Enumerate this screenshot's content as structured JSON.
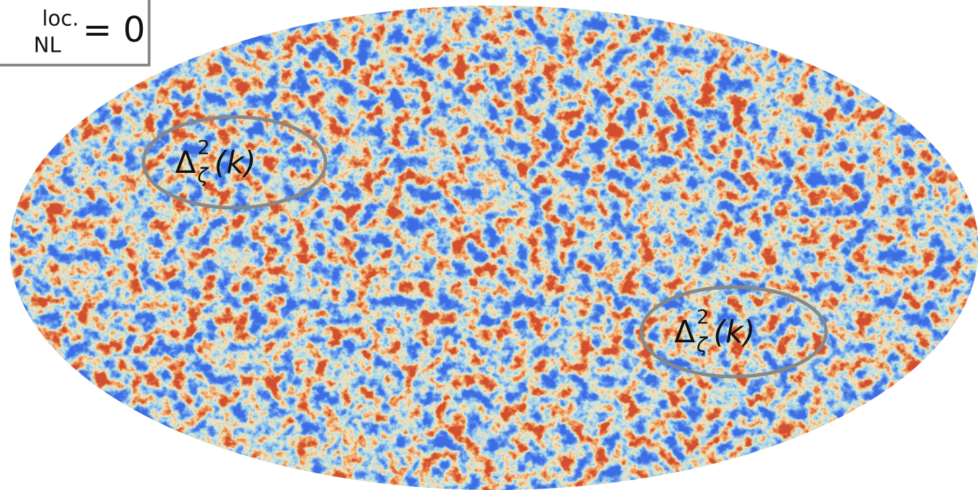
{
  "label": {
    "superscript": "loc.",
    "subscript": "NL",
    "text": "= 0"
  },
  "regions": [
    {
      "symbol": "Δ",
      "superscript": "2",
      "subscript": "ζ",
      "argument": "(k)"
    },
    {
      "symbol": "Δ",
      "superscript": "2",
      "subscript": "ζ",
      "argument": "(k)"
    }
  ]
}
